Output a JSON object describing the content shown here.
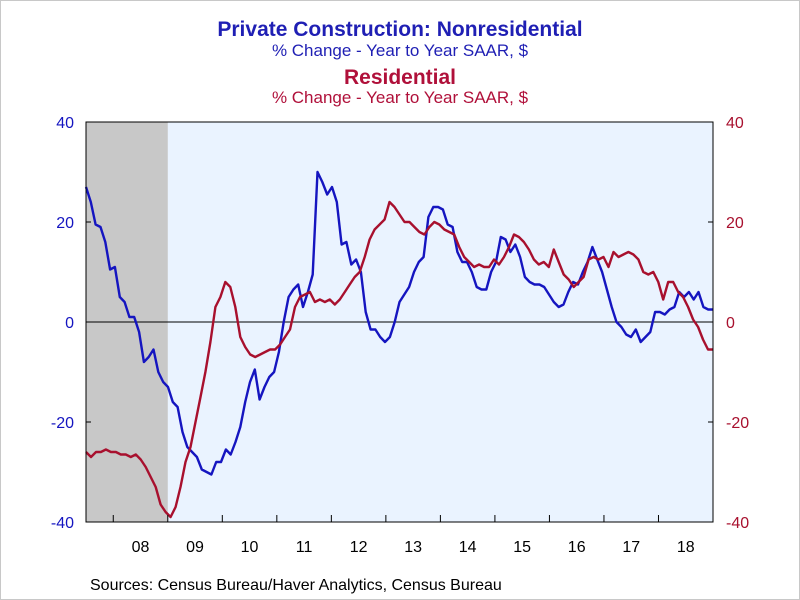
{
  "titles": {
    "line1": "Private Construction: Nonresidential",
    "line2": "% Change - Year to Year      SAAR, $",
    "line3": "Residential",
    "line4": "% Change - Year to Year      SAAR, $"
  },
  "source": "Sources:  Census Bureau/Haver Analytics, Census Bureau",
  "colors": {
    "nonres": "#1515c0",
    "res": "#a8102e",
    "plot_bg": "#eaf3ff",
    "recession": "#c8c8c8"
  },
  "chart_data": {
    "type": "line",
    "x_start": 2007.5,
    "x_end": 2019.0,
    "ylim": [
      -40,
      40
    ],
    "left_ticks": [
      "-40",
      "-20",
      "0",
      "20",
      "40"
    ],
    "right_ticks": [
      "-40",
      "-20",
      "0",
      "20",
      "40"
    ],
    "x_tick_labels": [
      "08",
      "09",
      "10",
      "11",
      "12",
      "13",
      "14",
      "15",
      "16",
      "17",
      "18"
    ],
    "recession": [
      2007.5,
      2009.0
    ],
    "series": [
      {
        "name": "Private Construction: Nonresidential",
        "axis": "left",
        "values": [
          27,
          24,
          19.5,
          19,
          16,
          10.5,
          11,
          5,
          4,
          1,
          1,
          -2,
          -8,
          -7,
          -5.5,
          -10,
          -12,
          -13,
          -16,
          -17,
          -22,
          -25,
          -26,
          -27,
          -29.5,
          -30,
          -30.5,
          -28,
          -28,
          -25.5,
          -26.5,
          -24,
          -21,
          -16,
          -12,
          -9.5,
          -15.5,
          -13,
          -11,
          -10,
          -6,
          0,
          5,
          6.5,
          7.5,
          3,
          6,
          9.5,
          30,
          28,
          25.5,
          27,
          24,
          15.5,
          16,
          11.5,
          12.5,
          10,
          2,
          -1.5,
          -1.5,
          -3,
          -4,
          -3,
          0,
          4,
          5.5,
          7,
          10,
          12,
          13,
          21,
          23,
          23,
          22.5,
          19.5,
          19,
          14,
          12,
          12,
          10,
          7,
          6.5,
          6.5,
          10,
          12,
          17,
          16.5,
          14,
          15.5,
          13,
          9,
          8,
          7.5,
          7.5,
          7,
          5.5,
          4,
          3,
          3.5,
          6,
          8,
          7.5,
          10,
          12,
          15,
          12.5,
          10,
          6.5,
          3,
          0,
          -1,
          -2.5,
          -3,
          -1.5,
          -4,
          -3,
          -2,
          2,
          2,
          1.5,
          2.5,
          3,
          6,
          5,
          6,
          4.5,
          6,
          3,
          2.5,
          2.5
        ]
      },
      {
        "name": "Residential",
        "axis": "right",
        "values": [
          -26,
          -27,
          -26,
          -26,
          -25.5,
          -26,
          -26,
          -26.5,
          -26.5,
          -27,
          -26.5,
          -27.5,
          -29,
          -31,
          -33,
          -36.5,
          -38,
          -39,
          -37,
          -33,
          -28,
          -25,
          -20,
          -15,
          -10,
          -4,
          3,
          5,
          8,
          7,
          3,
          -3,
          -5,
          -6.5,
          -7,
          -6.5,
          -6,
          -5.5,
          -5.5,
          -4.5,
          -3,
          -1.5,
          3,
          5,
          5.5,
          6,
          4,
          4.5,
          4,
          4.5,
          3.5,
          4.5,
          6,
          7.5,
          9,
          10,
          13,
          16.5,
          18.5,
          19.5,
          20.5,
          24,
          23,
          21.5,
          20,
          20,
          19,
          18,
          17.5,
          19,
          20,
          19.5,
          18.5,
          18,
          17.5,
          15,
          13,
          12,
          11,
          11.5,
          11,
          11,
          12.5,
          11.5,
          13,
          15,
          17.5,
          17,
          16,
          14.5,
          12.5,
          11.5,
          12,
          11,
          14.5,
          12,
          9.5,
          8.5,
          7,
          8,
          9,
          12.5,
          13,
          12.5,
          13,
          11,
          14,
          13,
          13.5,
          14,
          13.5,
          12.5,
          10,
          9.5,
          10,
          8,
          4.5,
          8,
          8,
          6,
          5,
          3,
          0.5,
          -1,
          -3.5,
          -5.5,
          -5.5
        ]
      }
    ]
  }
}
